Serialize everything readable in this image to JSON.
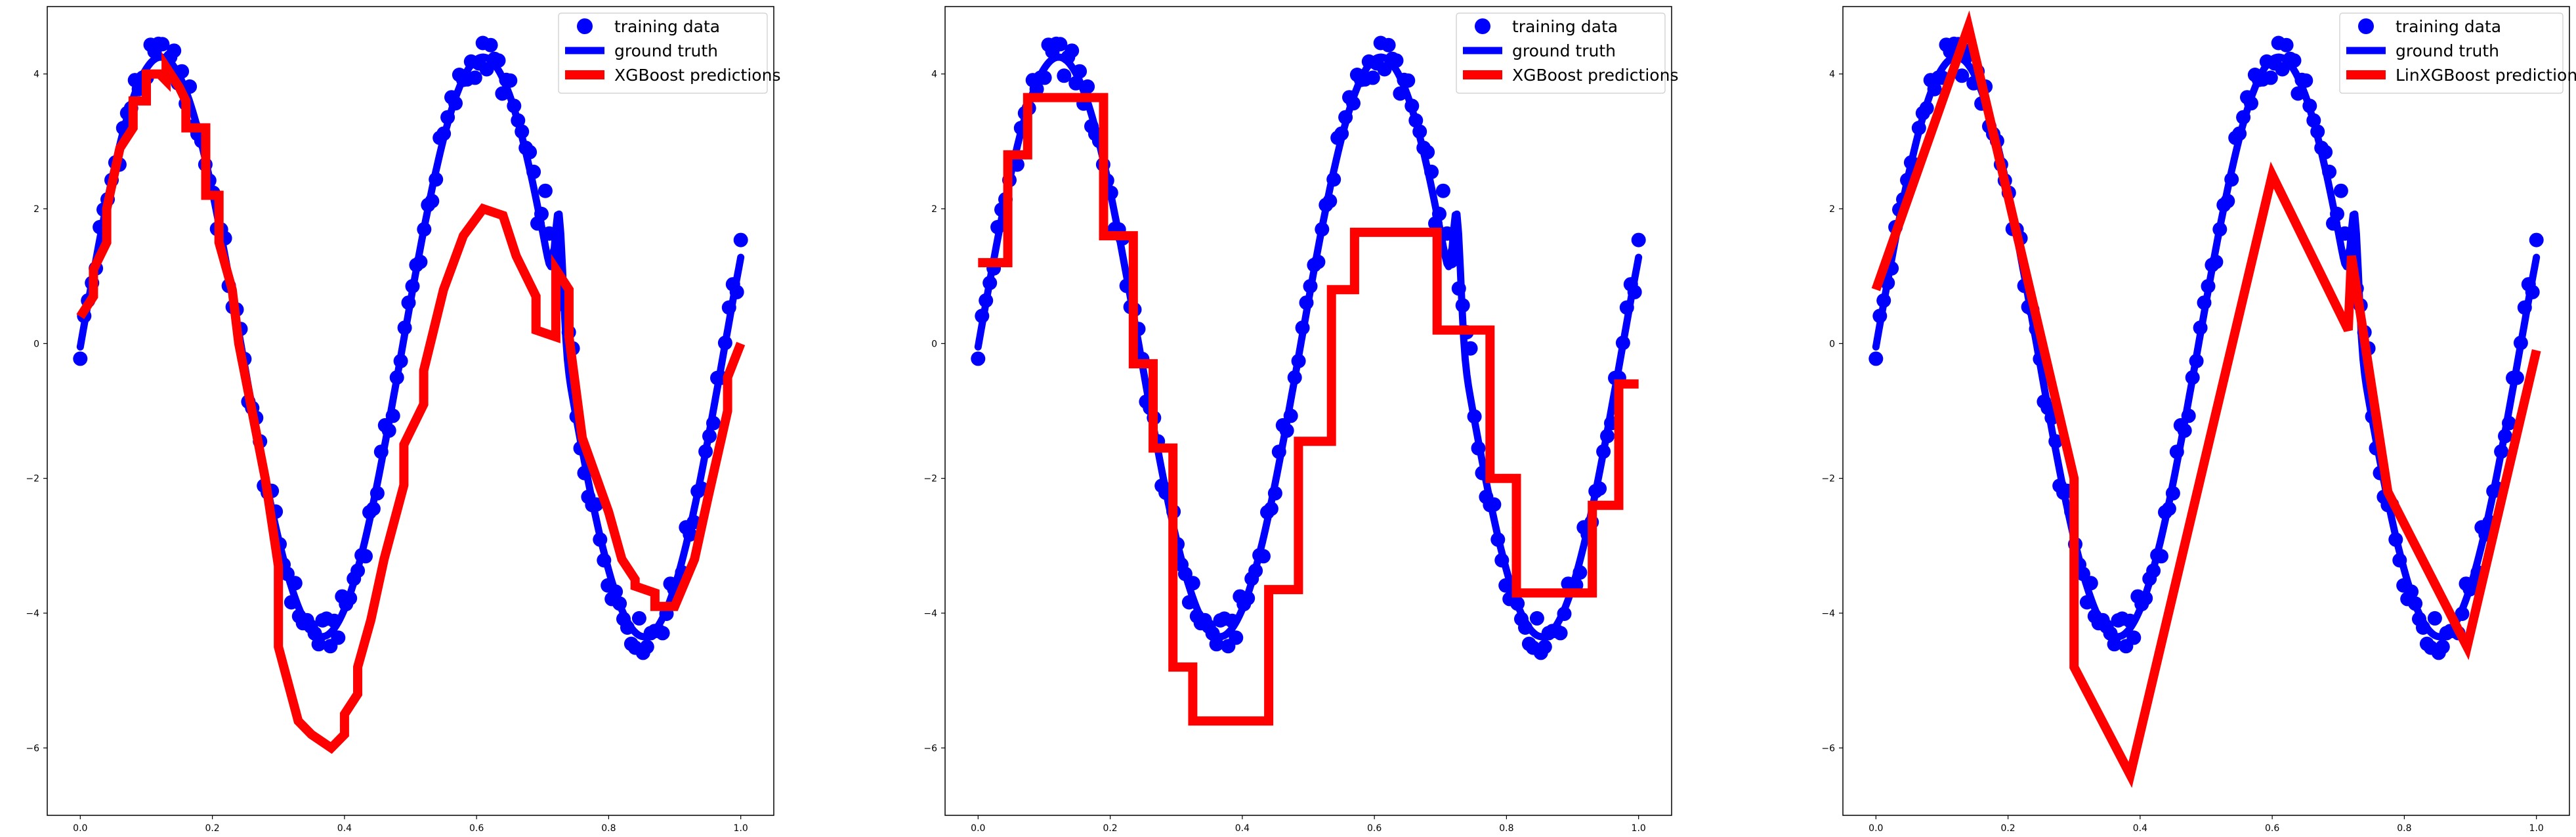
{
  "chart_data": [
    {
      "type": "line",
      "title": "",
      "xlim": [
        -0.05,
        1.05
      ],
      "ylim": [
        -7.0,
        5.0
      ],
      "xticks": [
        "0.0",
        "0.2",
        "0.4",
        "0.6",
        "0.8",
        "1.0"
      ],
      "yticks": [
        "-6",
        "-4",
        "-2",
        "0",
        "2",
        "4"
      ],
      "grid": false,
      "legend_position": "upper right",
      "legend": [
        "training data",
        "ground truth",
        "XGBoost predictions"
      ],
      "series_colors": {
        "training data": "#0000ff",
        "ground truth": "#0000ff",
        "predictions": "#ff0000"
      },
      "training_data_style": "markers",
      "ground_truth_style": "line",
      "predictions_style": "line",
      "prediction_x": [
        0.0,
        0.02,
        0.02,
        0.04,
        0.04,
        0.06,
        0.08,
        0.08,
        0.1,
        0.1,
        0.12,
        0.13,
        0.13,
        0.15,
        0.16,
        0.16,
        0.19,
        0.19,
        0.21,
        0.21,
        0.23,
        0.24,
        0.26,
        0.28,
        0.3,
        0.3,
        0.33,
        0.35,
        0.38,
        0.4,
        0.4,
        0.42,
        0.42,
        0.44,
        0.46,
        0.49,
        0.49,
        0.52,
        0.52,
        0.55,
        0.58,
        0.61,
        0.64,
        0.66,
        0.69,
        0.69,
        0.72,
        0.72,
        0.74,
        0.74,
        0.76,
        0.8,
        0.82,
        0.84,
        0.84,
        0.87,
        0.87,
        0.9,
        0.93,
        0.95,
        0.98,
        0.98,
        1.0
      ],
      "prediction_y": [
        0.4,
        0.7,
        1.1,
        1.5,
        2.0,
        2.9,
        3.2,
        3.6,
        3.6,
        4.0,
        4.0,
        3.9,
        4.1,
        3.8,
        3.6,
        3.2,
        3.2,
        2.2,
        2.2,
        1.5,
        0.8,
        0.0,
        -1.0,
        -2.0,
        -3.3,
        -4.5,
        -5.6,
        -5.8,
        -6.0,
        -5.8,
        -5.5,
        -5.2,
        -4.8,
        -4.1,
        -3.2,
        -2.1,
        -1.5,
        -0.9,
        -0.4,
        0.8,
        1.6,
        2.0,
        1.9,
        1.3,
        0.7,
        0.2,
        0.1,
        1.1,
        0.8,
        0.1,
        -1.4,
        -2.5,
        -3.2,
        -3.5,
        -3.6,
        -3.7,
        -3.9,
        -3.9,
        -3.2,
        -2.3,
        -1.0,
        -0.5,
        0.0
      ]
    },
    {
      "type": "line",
      "title": "",
      "xlim": [
        -0.05,
        1.05
      ],
      "ylim": [
        -7.0,
        5.0
      ],
      "xticks": [
        "0.0",
        "0.2",
        "0.4",
        "0.6",
        "0.8",
        "1.0"
      ],
      "yticks": [
        "-6",
        "-4",
        "-2",
        "0",
        "2",
        "4"
      ],
      "grid": false,
      "legend_position": "upper right",
      "legend": [
        "training data",
        "ground truth",
        "XGBoost predictions"
      ],
      "series_colors": {
        "training data": "#0000ff",
        "ground truth": "#0000ff",
        "predictions": "#ff0000"
      },
      "training_data_style": "markers",
      "ground_truth_style": "line",
      "predictions_style": "step",
      "prediction_x": [
        0.0,
        0.045,
        0.045,
        0.075,
        0.075,
        0.19,
        0.19,
        0.235,
        0.235,
        0.265,
        0.265,
        0.295,
        0.295,
        0.325,
        0.325,
        0.44,
        0.44,
        0.485,
        0.485,
        0.535,
        0.535,
        0.57,
        0.57,
        0.695,
        0.695,
        0.775,
        0.775,
        0.815,
        0.815,
        0.93,
        0.93,
        0.97,
        0.97,
        1.0
      ],
      "prediction_y": [
        1.2,
        1.2,
        2.8,
        2.8,
        3.65,
        3.65,
        1.6,
        1.6,
        -0.3,
        -0.3,
        -1.55,
        -1.55,
        -4.8,
        -4.8,
        -5.6,
        -5.6,
        -3.65,
        -3.65,
        -1.45,
        -1.45,
        0.8,
        0.8,
        1.65,
        1.65,
        0.2,
        0.2,
        -2.0,
        -2.0,
        -3.7,
        -3.7,
        -2.4,
        -2.4,
        -0.6,
        -0.6
      ]
    },
    {
      "type": "line",
      "title": "",
      "xlim": [
        -0.05,
        1.05
      ],
      "ylim": [
        -7.0,
        5.0
      ],
      "xticks": [
        "0.0",
        "0.2",
        "0.4",
        "0.6",
        "0.8",
        "1.0"
      ],
      "yticks": [
        "-6",
        "-4",
        "-2",
        "0",
        "2",
        "4"
      ],
      "grid": false,
      "legend_position": "upper right",
      "legend": [
        "training data",
        "ground truth",
        "LinXGBoost predictions"
      ],
      "series_colors": {
        "training data": "#0000ff",
        "ground truth": "#0000ff",
        "predictions": "#ff0000"
      },
      "training_data_style": "markers",
      "ground_truth_style": "line",
      "predictions_style": "line",
      "prediction_x": [
        0.0,
        0.14,
        0.3,
        0.3,
        0.385,
        0.6,
        0.715,
        0.72,
        0.775,
        0.895,
        1.0
      ],
      "prediction_y": [
        0.8,
        4.7,
        -2.0,
        -4.8,
        -6.4,
        2.5,
        0.2,
        1.3,
        -2.2,
        -4.5,
        -0.1
      ]
    }
  ]
}
